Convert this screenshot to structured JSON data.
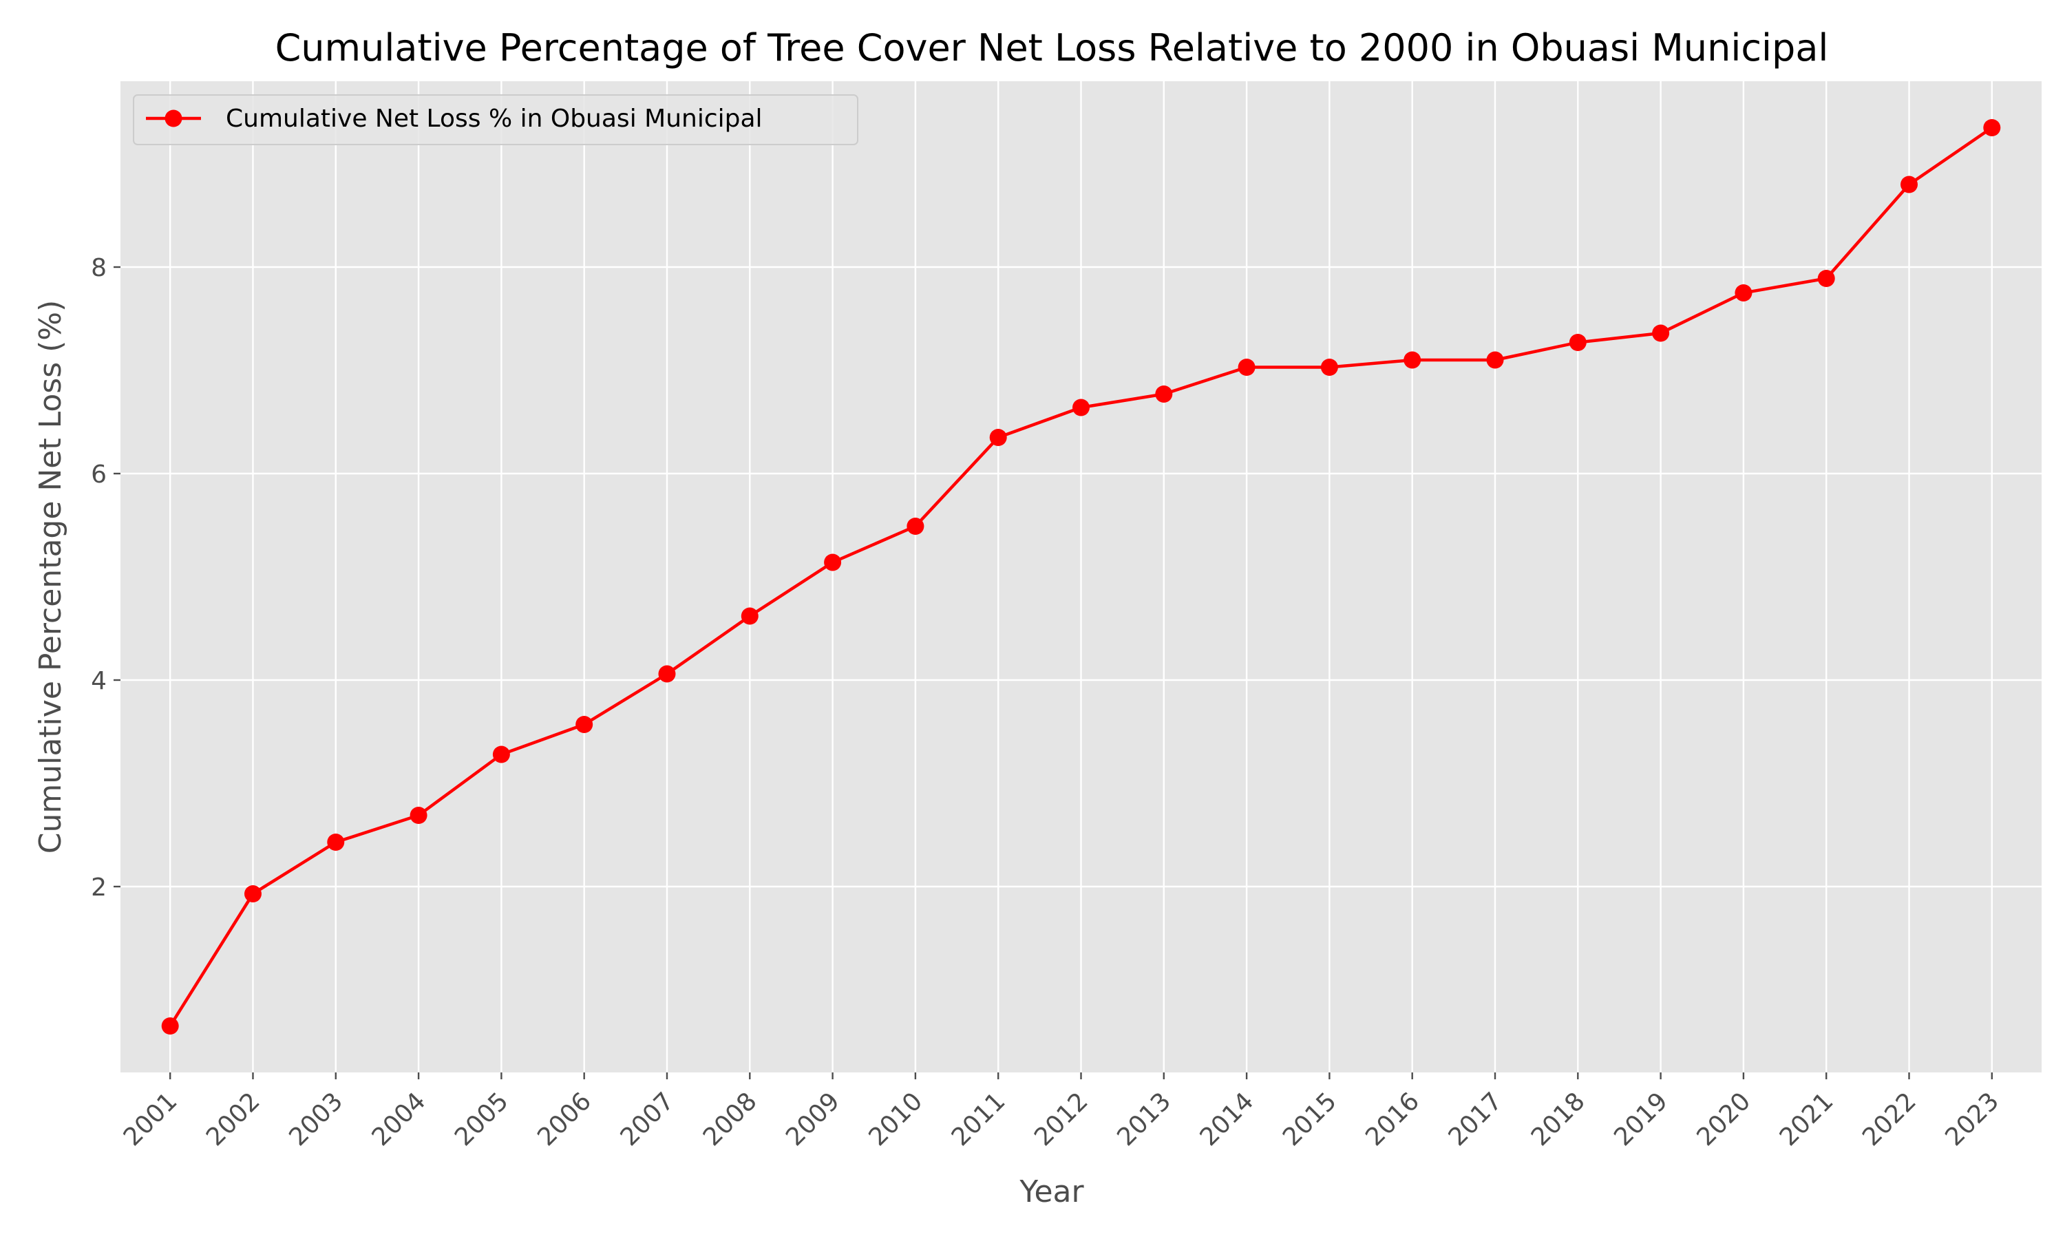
{
  "chart_data": {
    "type": "line",
    "title": "Cumulative Percentage of Tree Cover Net Loss Relative to 2000 in Obuasi Municipal",
    "xlabel": "Year",
    "ylabel": "Cumulative Percentage Net Loss (%)",
    "categories": [
      "2001",
      "2002",
      "2003",
      "2004",
      "2005",
      "2006",
      "2007",
      "2008",
      "2009",
      "2010",
      "2011",
      "2012",
      "2013",
      "2014",
      "2015",
      "2016",
      "2017",
      "2018",
      "2019",
      "2020",
      "2021",
      "2022",
      "2023"
    ],
    "series": [
      {
        "name": "Cumulative Net Loss % in Obuasi Municipal",
        "color": "#ff0000",
        "marker": "circle",
        "values": [
          0.65,
          1.93,
          2.43,
          2.69,
          3.28,
          3.57,
          4.06,
          4.62,
          5.14,
          5.49,
          6.35,
          6.64,
          6.77,
          7.03,
          7.03,
          7.1,
          7.1,
          7.27,
          7.36,
          7.75,
          7.89,
          8.8,
          9.35
        ]
      }
    ],
    "ylim": [
      0.2,
      9.8
    ],
    "yticks": [
      2,
      4,
      6,
      8
    ],
    "grid": true,
    "legend_position": "top-left",
    "background_color": "#e5e5e5",
    "grid_color": "#ffffff"
  }
}
